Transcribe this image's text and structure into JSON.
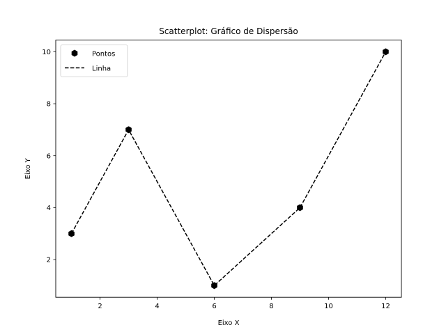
{
  "chart_data": {
    "type": "scatter",
    "title": "Scatterplot: Gráfico de Dispersão",
    "xlabel": "Eixo X",
    "ylabel": "Eixo Y",
    "x": [
      1,
      3,
      6,
      9,
      12
    ],
    "series": [
      {
        "name": "Pontos",
        "kind": "scatter",
        "marker": "hexagon",
        "color": "#000000",
        "values": [
          3,
          7,
          1,
          4,
          10
        ]
      },
      {
        "name": "Linha",
        "kind": "line",
        "linestyle": "dashed",
        "color": "#000000",
        "values": [
          3,
          7,
          1,
          4,
          10
        ]
      }
    ],
    "xticks": [
      2,
      4,
      6,
      8,
      10,
      12
    ],
    "yticks": [
      2,
      4,
      6,
      8,
      10
    ],
    "xlim": [
      0.45,
      12.55
    ],
    "ylim": [
      0.55,
      10.45
    ],
    "grid": false,
    "legend_position": "top-left"
  }
}
